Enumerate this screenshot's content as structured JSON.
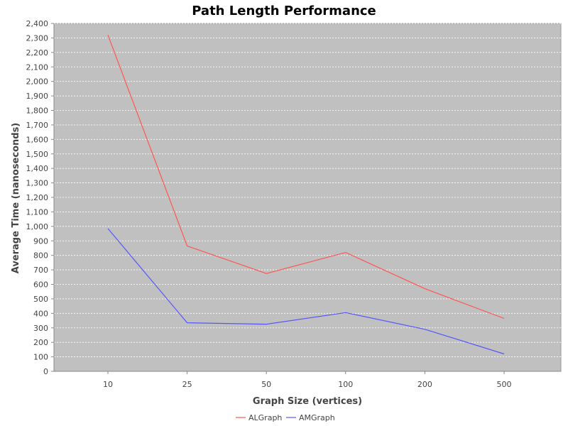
{
  "chart_data": {
    "type": "line",
    "title": "Path Length Performance",
    "xlabel": "Graph Size (vertices)",
    "ylabel": "Average Time (nanoseconds)",
    "categories": [
      "10",
      "25",
      "50",
      "100",
      "200",
      "500"
    ],
    "ylim": [
      0,
      2400
    ],
    "yticks": [
      0,
      100,
      200,
      300,
      400,
      500,
      600,
      700,
      800,
      900,
      1000,
      1100,
      1200,
      1300,
      1400,
      1500,
      1600,
      1700,
      1800,
      1900,
      2000,
      2100,
      2200,
      2300,
      2400
    ],
    "ytick_labels": [
      "0",
      "100",
      "200",
      "300",
      "400",
      "500",
      "600",
      "700",
      "800",
      "900",
      "1,000",
      "1,100",
      "1,200",
      "1,300",
      "1,400",
      "1,500",
      "1,600",
      "1,700",
      "1,800",
      "1,900",
      "2,000",
      "2,100",
      "2,200",
      "2,300",
      "2,400"
    ],
    "grid": true,
    "legend_position": "bottom",
    "series": [
      {
        "name": "ALGraph",
        "color": "#ff5555",
        "values": [
          2320,
          865,
          675,
          820,
          570,
          365
        ]
      },
      {
        "name": "AMGraph",
        "color": "#5555ff",
        "values": [
          985,
          335,
          325,
          405,
          290,
          120
        ]
      }
    ]
  }
}
